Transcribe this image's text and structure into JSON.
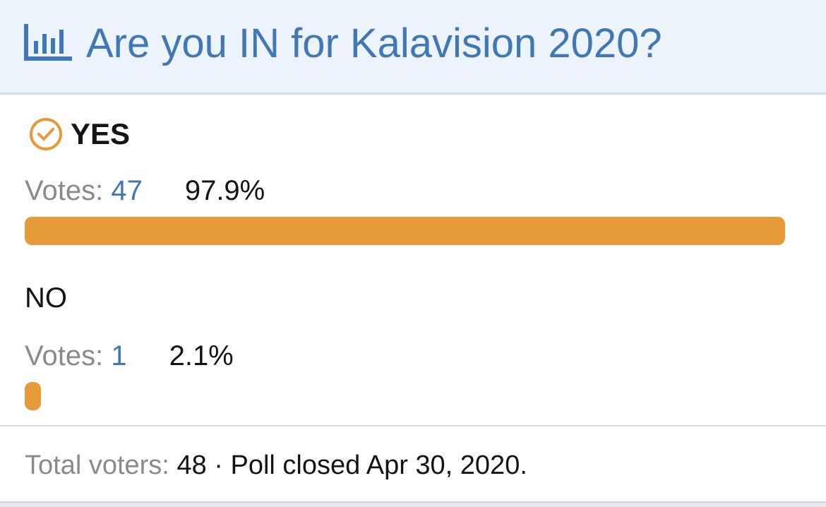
{
  "poll": {
    "title": "Are you IN for Kalavision 2020?",
    "options": [
      {
        "label": "YES",
        "chosen": true,
        "votes_label": "Votes:",
        "votes": 47,
        "percent": {
          "value": 97.9,
          "label": "97.9%"
        }
      },
      {
        "label": "NO",
        "chosen": false,
        "votes_label": "Votes:",
        "votes": 1,
        "percent": {
          "value": 2.1,
          "label": "2.1%"
        }
      }
    ],
    "footer": {
      "total_label": "Total voters:",
      "total": 48,
      "status": "· Poll closed Apr 30, 2020."
    }
  }
}
